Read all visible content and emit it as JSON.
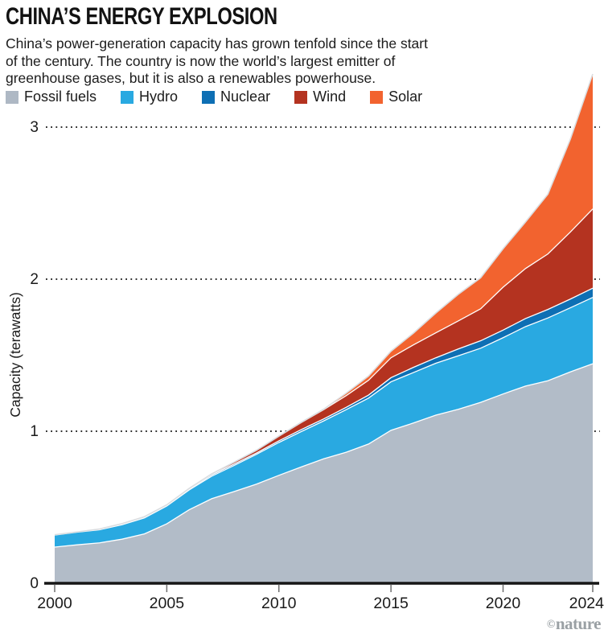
{
  "header": {
    "title": "CHINA’S ENERGY EXPLOSION",
    "subtitle_lines": [
      "China’s power-generation capacity has grown tenfold since the start",
      "of the century. The country is now the world’s largest emitter of",
      "greenhouse gases, but it is also a renewables powerhouse."
    ]
  },
  "legend": {
    "items": [
      {
        "label": "Fossil fuels",
        "color": "#aeb8c4"
      },
      {
        "label": "Hydro",
        "color": "#29a9e1"
      },
      {
        "label": "Nuclear",
        "color": "#0e6fb4"
      },
      {
        "label": "Wind",
        "color": "#b43320"
      },
      {
        "label": "Solar",
        "color": "#f2632f"
      }
    ]
  },
  "footer": {
    "copyright": "©",
    "brand": "nature"
  },
  "chart_data": {
    "type": "area",
    "stacked": true,
    "title": "CHINA’S ENERGY EXPLOSION",
    "xlabel": "",
    "ylabel": "Capacity (terawatts)",
    "grid": "dotted-horizontal",
    "legend_position": "top",
    "ylim": [
      0,
      3.35
    ],
    "xlim": [
      2000,
      2024
    ],
    "y_ticks": [
      0,
      1,
      2,
      3
    ],
    "x_ticks": [
      2000,
      2005,
      2010,
      2015,
      2020,
      2024
    ],
    "x": [
      2000,
      2001,
      2002,
      2003,
      2004,
      2005,
      2006,
      2007,
      2008,
      2009,
      2010,
      2011,
      2012,
      2013,
      2014,
      2015,
      2016,
      2017,
      2018,
      2019,
      2020,
      2021,
      2022,
      2023,
      2024
    ],
    "series": [
      {
        "name": "Fossil fuels",
        "color": "#b2bcc8",
        "values": [
          0.238,
          0.253,
          0.266,
          0.29,
          0.325,
          0.391,
          0.484,
          0.556,
          0.603,
          0.652,
          0.71,
          0.765,
          0.819,
          0.862,
          0.916,
          1.006,
          1.054,
          1.106,
          1.144,
          1.19,
          1.245,
          1.297,
          1.332,
          1.39,
          1.444
        ]
      },
      {
        "name": "Hydro",
        "color": "#29a9e1",
        "values": [
          0.079,
          0.083,
          0.086,
          0.095,
          0.105,
          0.117,
          0.13,
          0.148,
          0.172,
          0.196,
          0.216,
          0.233,
          0.249,
          0.28,
          0.302,
          0.319,
          0.332,
          0.341,
          0.352,
          0.356,
          0.37,
          0.391,
          0.413,
          0.422,
          0.436
        ]
      },
      {
        "name": "Nuclear",
        "color": "#0e6fb4",
        "values": [
          0.002,
          0.002,
          0.005,
          0.006,
          0.007,
          0.007,
          0.007,
          0.009,
          0.009,
          0.009,
          0.011,
          0.013,
          0.013,
          0.015,
          0.02,
          0.027,
          0.034,
          0.036,
          0.045,
          0.049,
          0.05,
          0.053,
          0.056,
          0.057,
          0.061
        ]
      },
      {
        "name": "Wind",
        "color": "#b43320",
        "values": [
          0.0,
          0.0,
          0.0,
          0.001,
          0.001,
          0.001,
          0.003,
          0.006,
          0.012,
          0.018,
          0.03,
          0.046,
          0.061,
          0.077,
          0.097,
          0.131,
          0.148,
          0.164,
          0.184,
          0.21,
          0.282,
          0.329,
          0.365,
          0.441,
          0.521
        ]
      },
      {
        "name": "Solar",
        "color": "#f2632f",
        "values": [
          0.0,
          0.0,
          0.0,
          0.0,
          0.0,
          0.0,
          0.0,
          0.0,
          0.0,
          0.0,
          0.001,
          0.002,
          0.003,
          0.016,
          0.028,
          0.043,
          0.077,
          0.13,
          0.175,
          0.204,
          0.253,
          0.306,
          0.393,
          0.61,
          0.887
        ]
      }
    ]
  }
}
